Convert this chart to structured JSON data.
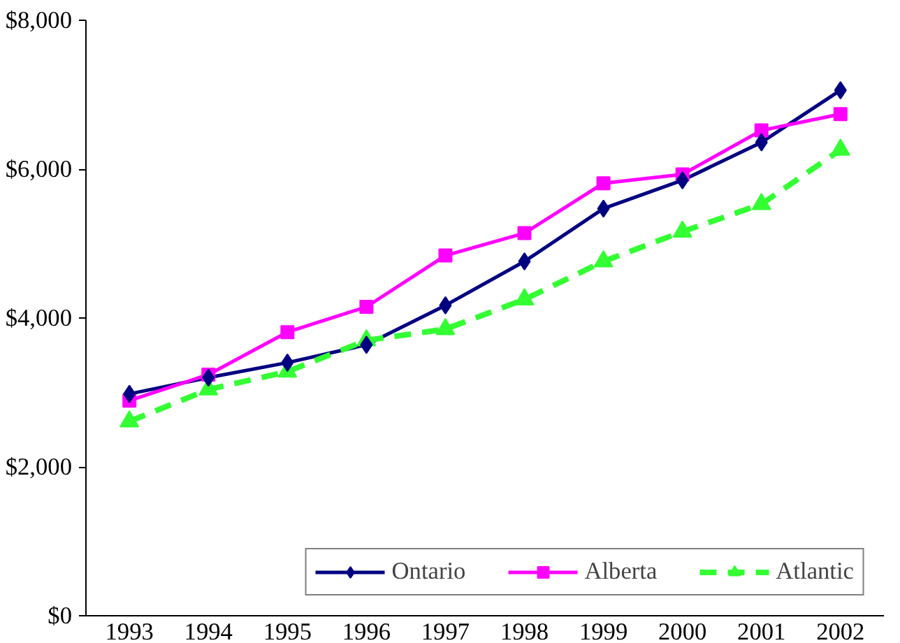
{
  "chart_data": {
    "type": "line",
    "categories": [
      "1993",
      "1994",
      "1995",
      "1996",
      "1997",
      "1998",
      "1999",
      "2000",
      "2001",
      "2002"
    ],
    "series": [
      {
        "name": "Ontario",
        "color": "#000080",
        "marker": "diamond",
        "line_style": "solid",
        "values": [
          2980,
          3200,
          3400,
          3640,
          4170,
          4760,
          5470,
          5850,
          6360,
          7060
        ]
      },
      {
        "name": "Alberta",
        "color": "#ff00ff",
        "marker": "square",
        "line_style": "solid",
        "values": [
          2890,
          3240,
          3810,
          4150,
          4840,
          5140,
          5810,
          5930,
          6520,
          6740
        ]
      },
      {
        "name": "Atlantic",
        "color": "#33ff33",
        "marker": "triangle",
        "line_style": "dashed",
        "values": [
          2610,
          3040,
          3280,
          3700,
          3850,
          4250,
          4760,
          5160,
          5530,
          6260
        ]
      }
    ],
    "ylim": [
      0,
      8000
    ],
    "yticks": [
      {
        "value": 0,
        "label": "$0"
      },
      {
        "value": 2000,
        "label": "$2,000"
      },
      {
        "value": 4000,
        "label": "$4,000"
      },
      {
        "value": 6000,
        "label": "$6,000"
      },
      {
        "value": 8000,
        "label": "$8,000"
      }
    ],
    "grid": false,
    "legend": "bottom right"
  }
}
